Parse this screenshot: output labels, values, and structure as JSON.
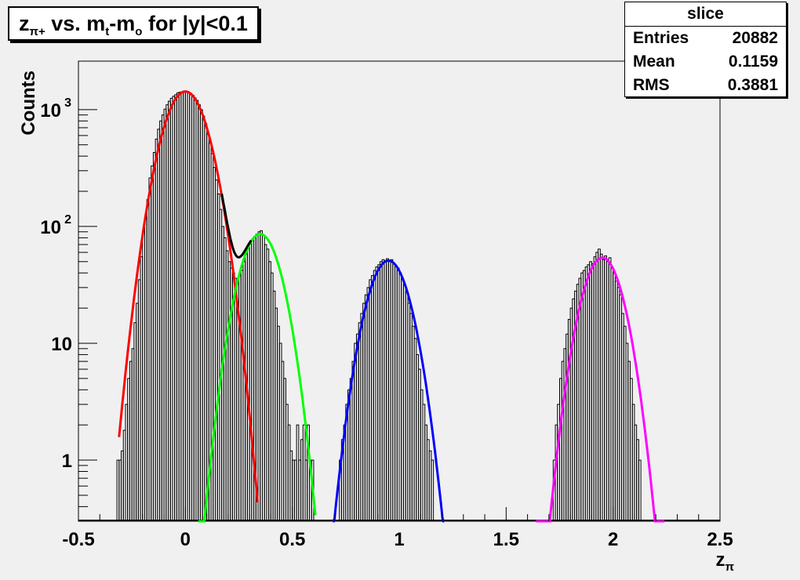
{
  "window": {
    "background": "#f0f0f0"
  },
  "title": {
    "z": "z",
    "z_sub": "π+",
    "vs": " vs. m",
    "m_sub": "t",
    "dash": "-m",
    "mo_sub": "o",
    "tail": " for |y|<0.1"
  },
  "stats": {
    "name": "slice",
    "rows": [
      {
        "label": "Entries",
        "value": "20882"
      },
      {
        "label": "Mean",
        "value": "0.1159"
      },
      {
        "label": "RMS",
        "value": "0.3881"
      }
    ]
  },
  "chart_data": {
    "type": "line",
    "title": "zπ+ vs. mt-mo for |y|<0.1",
    "xlabel": "zπ",
    "ylabel": "Counts",
    "xlim": [
      -0.5,
      2.5
    ],
    "ylim": [
      0.3,
      2600
    ],
    "yscale": "log",
    "grid": false,
    "x_ticks": [
      {
        "value": -0.5,
        "label": "-0.5"
      },
      {
        "value": 0,
        "label": "0"
      },
      {
        "value": 0.5,
        "label": "0.5"
      },
      {
        "value": 1,
        "label": "1"
      },
      {
        "value": 1.5,
        "label": "1.5"
      },
      {
        "value": 2,
        "label": "2"
      },
      {
        "value": 2.5,
        "label": "2.5"
      }
    ],
    "y_ticks": [
      {
        "value": 1,
        "label": "1"
      },
      {
        "value": 10,
        "label": "10"
      },
      {
        "value": 100,
        "label": "10",
        "exp": "2"
      },
      {
        "value": 1000,
        "label": "10",
        "exp": "3"
      }
    ],
    "series": [
      {
        "color": "#ff0000",
        "fit": "gaussian",
        "amplitude": 1430,
        "mean": 0.0,
        "sigma": 0.084,
        "range": [
          -0.31,
          0.34
        ]
      },
      {
        "color": "#00ff00",
        "fit": "gaussian",
        "amplitude": 86,
        "mean": 0.35,
        "sigma": 0.0775,
        "range": [
          0.06,
          0.61
        ]
      },
      {
        "color": "#0000ff",
        "fit": "gaussian",
        "amplitude": 51,
        "mean": 0.95,
        "sigma": 0.0792,
        "range": [
          0.69,
          1.21
        ]
      },
      {
        "color": "#ff00ff",
        "fit": "gaussian",
        "amplitude": 54,
        "mean": 1.95,
        "sigma": 0.0763,
        "range": [
          1.64,
          2.24
        ]
      },
      {
        "color": "#000000",
        "fit": "total"
      }
    ],
    "histogram": {
      "color": "#000000",
      "bin_width": 0.01,
      "bins": [
        {
          "x": -0.315,
          "y": 1
        },
        {
          "x": -0.305,
          "y": 1
        },
        {
          "x": -0.295,
          "y": 1.2
        },
        {
          "x": -0.285,
          "y": 1.8
        },
        {
          "x": -0.275,
          "y": 3
        },
        {
          "x": -0.265,
          "y": 5
        },
        {
          "x": -0.255,
          "y": 7
        },
        {
          "x": -0.245,
          "y": 9
        },
        {
          "x": -0.235,
          "y": 15
        },
        {
          "x": -0.225,
          "y": 22
        },
        {
          "x": -0.215,
          "y": 35
        },
        {
          "x": -0.205,
          "y": 55
        },
        {
          "x": -0.195,
          "y": 90
        },
        {
          "x": -0.185,
          "y": 120
        },
        {
          "x": -0.175,
          "y": 170
        },
        {
          "x": -0.165,
          "y": 260
        },
        {
          "x": -0.155,
          "y": 330
        },
        {
          "x": -0.145,
          "y": 430
        },
        {
          "x": -0.135,
          "y": 560
        },
        {
          "x": -0.125,
          "y": 680
        },
        {
          "x": -0.115,
          "y": 800
        },
        {
          "x": -0.105,
          "y": 900
        },
        {
          "x": -0.095,
          "y": 1010
        },
        {
          "x": -0.085,
          "y": 1100
        },
        {
          "x": -0.075,
          "y": 1180
        },
        {
          "x": -0.065,
          "y": 1250
        },
        {
          "x": -0.055,
          "y": 1300
        },
        {
          "x": -0.045,
          "y": 1340
        },
        {
          "x": -0.035,
          "y": 1390
        },
        {
          "x": -0.025,
          "y": 1410
        },
        {
          "x": -0.015,
          "y": 1420
        },
        {
          "x": -0.005,
          "y": 1440
        },
        {
          "x": 0.005,
          "y": 1420
        },
        {
          "x": 0.015,
          "y": 1400
        },
        {
          "x": 0.025,
          "y": 1370
        },
        {
          "x": 0.035,
          "y": 1330
        },
        {
          "x": 0.045,
          "y": 1260
        },
        {
          "x": 0.055,
          "y": 1200
        },
        {
          "x": 0.065,
          "y": 1100
        },
        {
          "x": 0.075,
          "y": 1000
        },
        {
          "x": 0.085,
          "y": 880
        },
        {
          "x": 0.095,
          "y": 760
        },
        {
          "x": 0.105,
          "y": 620
        },
        {
          "x": 0.115,
          "y": 520
        },
        {
          "x": 0.125,
          "y": 420
        },
        {
          "x": 0.135,
          "y": 320
        },
        {
          "x": 0.145,
          "y": 250
        },
        {
          "x": 0.155,
          "y": 190
        },
        {
          "x": 0.165,
          "y": 140
        },
        {
          "x": 0.175,
          "y": 100
        },
        {
          "x": 0.185,
          "y": 80
        },
        {
          "x": 0.195,
          "y": 62
        },
        {
          "x": 0.205,
          "y": 50
        },
        {
          "x": 0.215,
          "y": 44
        },
        {
          "x": 0.225,
          "y": 40
        },
        {
          "x": 0.235,
          "y": 36
        },
        {
          "x": 0.245,
          "y": 34
        },
        {
          "x": 0.255,
          "y": 38
        },
        {
          "x": 0.265,
          "y": 42
        },
        {
          "x": 0.275,
          "y": 50
        },
        {
          "x": 0.285,
          "y": 58
        },
        {
          "x": 0.295,
          "y": 66
        },
        {
          "x": 0.305,
          "y": 74
        },
        {
          "x": 0.315,
          "y": 78
        },
        {
          "x": 0.325,
          "y": 82
        },
        {
          "x": 0.335,
          "y": 86
        },
        {
          "x": 0.345,
          "y": 90
        },
        {
          "x": 0.355,
          "y": 92
        },
        {
          "x": 0.365,
          "y": 84
        },
        {
          "x": 0.375,
          "y": 70
        },
        {
          "x": 0.385,
          "y": 64
        },
        {
          "x": 0.395,
          "y": 50
        },
        {
          "x": 0.405,
          "y": 40
        },
        {
          "x": 0.415,
          "y": 28
        },
        {
          "x": 0.425,
          "y": 20
        },
        {
          "x": 0.435,
          "y": 14
        },
        {
          "x": 0.445,
          "y": 10
        },
        {
          "x": 0.455,
          "y": 7
        },
        {
          "x": 0.465,
          "y": 5
        },
        {
          "x": 0.475,
          "y": 3
        },
        {
          "x": 0.485,
          "y": 2
        },
        {
          "x": 0.495,
          "y": 1.2
        },
        {
          "x": 0.505,
          "y": 1
        },
        {
          "x": 0.515,
          "y": 1
        },
        {
          "x": 0.525,
          "y": 2
        },
        {
          "x": 0.535,
          "y": 1
        },
        {
          "x": 0.545,
          "y": 1.5
        },
        {
          "x": 0.555,
          "y": 2
        },
        {
          "x": 0.565,
          "y": 1
        },
        {
          "x": 0.575,
          "y": 2
        },
        {
          "x": 0.585,
          "y": 1
        },
        {
          "x": 0.595,
          "y": 1
        },
        {
          "x": 0.725,
          "y": 1
        },
        {
          "x": 0.735,
          "y": 1.5
        },
        {
          "x": 0.745,
          "y": 2
        },
        {
          "x": 0.755,
          "y": 3
        },
        {
          "x": 0.765,
          "y": 4
        },
        {
          "x": 0.775,
          "y": 5
        },
        {
          "x": 0.785,
          "y": 7
        },
        {
          "x": 0.795,
          "y": 10
        },
        {
          "x": 0.805,
          "y": 12
        },
        {
          "x": 0.815,
          "y": 15
        },
        {
          "x": 0.825,
          "y": 18
        },
        {
          "x": 0.835,
          "y": 22
        },
        {
          "x": 0.845,
          "y": 26
        },
        {
          "x": 0.855,
          "y": 30
        },
        {
          "x": 0.865,
          "y": 35
        },
        {
          "x": 0.875,
          "y": 38
        },
        {
          "x": 0.885,
          "y": 42
        },
        {
          "x": 0.895,
          "y": 45
        },
        {
          "x": 0.905,
          "y": 47
        },
        {
          "x": 0.915,
          "y": 50
        },
        {
          "x": 0.925,
          "y": 52
        },
        {
          "x": 0.935,
          "y": 51
        },
        {
          "x": 0.945,
          "y": 53
        },
        {
          "x": 0.955,
          "y": 50
        },
        {
          "x": 0.965,
          "y": 52
        },
        {
          "x": 0.975,
          "y": 48
        },
        {
          "x": 0.985,
          "y": 46
        },
        {
          "x": 0.995,
          "y": 44
        },
        {
          "x": 1.005,
          "y": 40
        },
        {
          "x": 1.015,
          "y": 36
        },
        {
          "x": 1.025,
          "y": 32
        },
        {
          "x": 1.035,
          "y": 28
        },
        {
          "x": 1.045,
          "y": 22
        },
        {
          "x": 1.055,
          "y": 18
        },
        {
          "x": 1.065,
          "y": 14
        },
        {
          "x": 1.075,
          "y": 11
        },
        {
          "x": 1.085,
          "y": 8
        },
        {
          "x": 1.095,
          "y": 6
        },
        {
          "x": 1.105,
          "y": 4
        },
        {
          "x": 1.115,
          "y": 3
        },
        {
          "x": 1.125,
          "y": 2
        },
        {
          "x": 1.135,
          "y": 1.5
        },
        {
          "x": 1.145,
          "y": 1.2
        },
        {
          "x": 1.155,
          "y": 1
        },
        {
          "x": 1.725,
          "y": 1
        },
        {
          "x": 1.735,
          "y": 2
        },
        {
          "x": 1.745,
          "y": 3
        },
        {
          "x": 1.755,
          "y": 5
        },
        {
          "x": 1.765,
          "y": 7
        },
        {
          "x": 1.775,
          "y": 9
        },
        {
          "x": 1.785,
          "y": 12
        },
        {
          "x": 1.795,
          "y": 16
        },
        {
          "x": 1.805,
          "y": 20
        },
        {
          "x": 1.815,
          "y": 24
        },
        {
          "x": 1.825,
          "y": 28
        },
        {
          "x": 1.835,
          "y": 32
        },
        {
          "x": 1.845,
          "y": 36
        },
        {
          "x": 1.855,
          "y": 40
        },
        {
          "x": 1.865,
          "y": 42
        },
        {
          "x": 1.875,
          "y": 45
        },
        {
          "x": 1.885,
          "y": 47
        },
        {
          "x": 1.895,
          "y": 50
        },
        {
          "x": 1.905,
          "y": 48
        },
        {
          "x": 1.915,
          "y": 55
        },
        {
          "x": 1.925,
          "y": 60
        },
        {
          "x": 1.935,
          "y": 64
        },
        {
          "x": 1.945,
          "y": 58
        },
        {
          "x": 1.955,
          "y": 52
        },
        {
          "x": 1.965,
          "y": 56
        },
        {
          "x": 1.975,
          "y": 50
        },
        {
          "x": 1.985,
          "y": 54
        },
        {
          "x": 1.995,
          "y": 45
        },
        {
          "x": 2.005,
          "y": 40
        },
        {
          "x": 2.015,
          "y": 34
        },
        {
          "x": 2.025,
          "y": 30
        },
        {
          "x": 2.035,
          "y": 26
        },
        {
          "x": 2.045,
          "y": 18
        },
        {
          "x": 2.055,
          "y": 14
        },
        {
          "x": 2.065,
          "y": 10
        },
        {
          "x": 2.075,
          "y": 7
        },
        {
          "x": 2.085,
          "y": 5
        },
        {
          "x": 2.095,
          "y": 3
        },
        {
          "x": 2.105,
          "y": 2
        },
        {
          "x": 2.115,
          "y": 1.5
        },
        {
          "x": 2.125,
          "y": 1
        }
      ]
    }
  }
}
